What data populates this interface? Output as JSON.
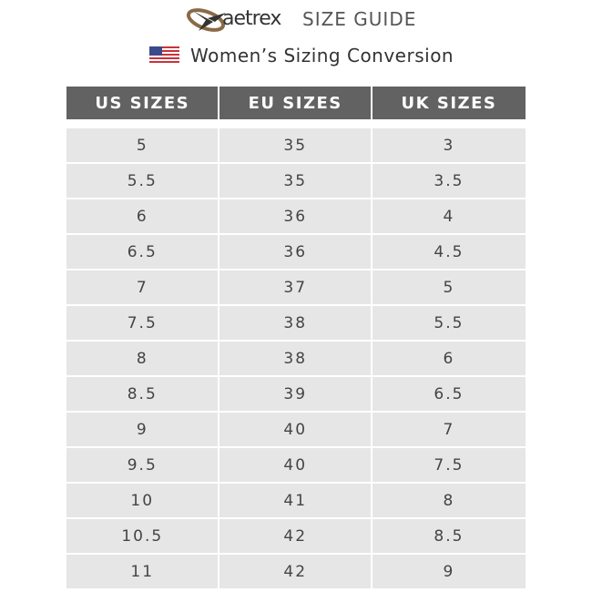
{
  "header": {
    "brand": "aetrex",
    "title": "SIZE GUIDE",
    "subtitle": "Women’s Sizing Conversion",
    "flag_icon": "us-flag-icon"
  },
  "table": {
    "columns": [
      "US SIZES",
      "EU SIZES",
      "UK SIZES"
    ],
    "rows": [
      [
        "5",
        "35",
        "3"
      ],
      [
        "5.5",
        "35",
        "3.5"
      ],
      [
        "6",
        "36",
        "4"
      ],
      [
        "6.5",
        "36",
        "4.5"
      ],
      [
        "7",
        "37",
        "5"
      ],
      [
        "7.5",
        "38",
        "5.5"
      ],
      [
        "8",
        "38",
        "6"
      ],
      [
        "8.5",
        "39",
        "6.5"
      ],
      [
        "9",
        "40",
        "7"
      ],
      [
        "9.5",
        "40",
        "7.5"
      ],
      [
        "10",
        "41",
        "8"
      ],
      [
        "10.5",
        "42",
        "8.5"
      ],
      [
        "11",
        "42",
        "9"
      ]
    ]
  },
  "colors": {
    "header_bg": "#626262",
    "cell_bg": "#e6e6e6",
    "logo_ring": "#8a6a45"
  }
}
